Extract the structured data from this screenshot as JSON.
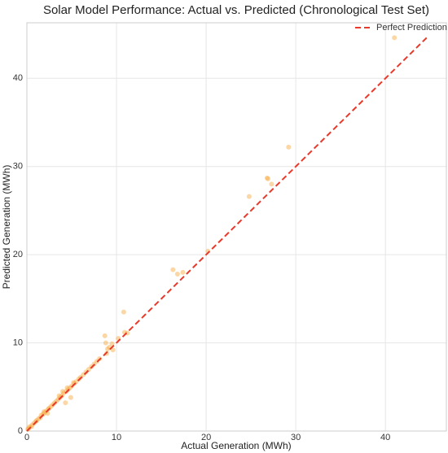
{
  "chart_data": {
    "type": "scatter",
    "title": "Solar Model Performance: Actual vs. Predicted (Chronological Test Set)",
    "x_label": "Actual Generation (MWh)",
    "y_label": "Predicted Generation (MWh)",
    "xlim": [
      0,
      46.8
    ],
    "ylim": [
      0,
      46.3
    ],
    "xticks": [
      0,
      10,
      20,
      30,
      40
    ],
    "yticks": [
      0,
      10,
      20,
      30,
      40
    ],
    "grid": true,
    "legend": "upper right",
    "points": {
      "color": "#f7a73a",
      "x": [
        41.0,
        29.2,
        26.8,
        26.9,
        27.3,
        24.8,
        16.3,
        16.8,
        17.4,
        20.2,
        10.8,
        10.9,
        11.2,
        8.7,
        8.8,
        9.2,
        9.5,
        9.0,
        8.9,
        9.6,
        10.2,
        4.3,
        4.9,
        4.0,
        0.1,
        0.2,
        0.3,
        0.5,
        0.6,
        0.8,
        1.0,
        1.1,
        1.3,
        1.5,
        1.6,
        1.8,
        2.0,
        2.2,
        2.4,
        2.5,
        2.7,
        2.9,
        3.1,
        3.3,
        3.5,
        3.7,
        3.9,
        4.1,
        4.4,
        4.6,
        4.8,
        5.0,
        5.3,
        5.5,
        5.8,
        6.0,
        6.3,
        6.6,
        6.9,
        7.2,
        7.5,
        7.8,
        8.1,
        3.6,
        4.5,
        5.2,
        2.3,
        1.9
      ],
      "y": [
        44.6,
        32.2,
        28.7,
        28.6,
        28.0,
        26.6,
        18.3,
        17.8,
        18.0,
        20.4,
        13.5,
        11.2,
        11.1,
        10.8,
        10.0,
        9.5,
        9.9,
        9.3,
        8.8,
        9.2,
        10.5,
        3.2,
        3.8,
        4.5,
        0.2,
        0.3,
        0.5,
        0.5,
        0.7,
        0.9,
        1.1,
        1.2,
        1.4,
        1.5,
        1.8,
        1.9,
        2.1,
        2.3,
        2.5,
        2.6,
        2.8,
        3.0,
        3.2,
        3.4,
        3.6,
        3.8,
        4.0,
        4.3,
        4.5,
        4.7,
        4.9,
        5.1,
        5.4,
        5.6,
        5.9,
        6.1,
        6.4,
        6.7,
        7.0,
        7.3,
        7.6,
        7.9,
        8.2,
        4.0,
        4.9,
        5.5,
        2.0,
        2.2
      ]
    },
    "reference_line": {
      "name": "Perfect Prediction",
      "color": "#e8392b",
      "x": [
        0,
        44.6
      ],
      "y": [
        0,
        44.6
      ]
    }
  }
}
